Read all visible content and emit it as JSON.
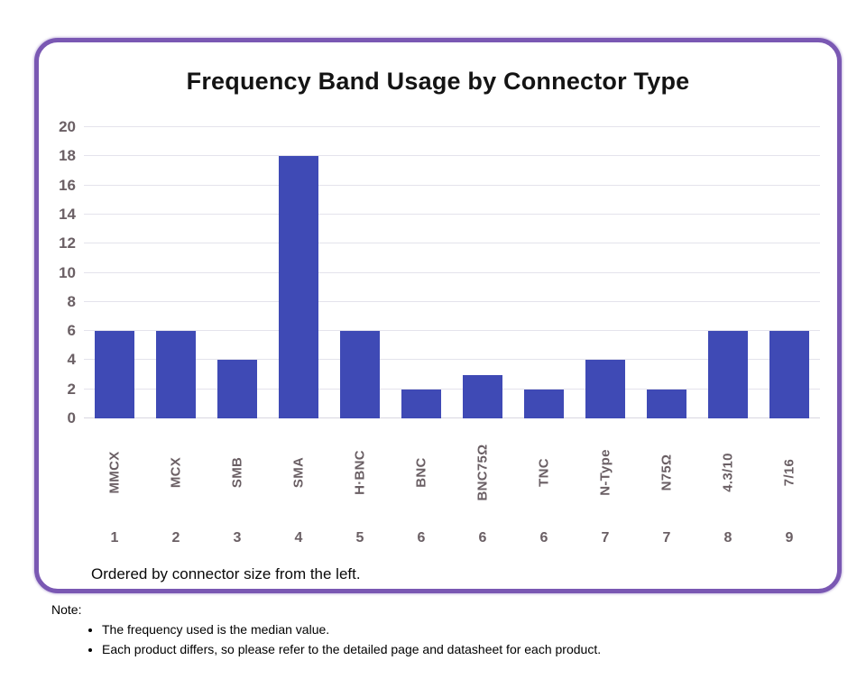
{
  "chart_card": {
    "title": "Frequency Band Usage by Connector Type",
    "caption": "Ordered by connector size from the left.",
    "colors": {
      "bar": "#3f4ab5",
      "card_border": "#7a58b3",
      "axis_label": "#6a5f64",
      "gridline": "#e4e3ec"
    }
  },
  "chart_data": {
    "type": "bar",
    "title": "Frequency Band Usage by Connector Type",
    "categories": [
      "MMCX",
      "MCX",
      "SMB",
      "SMA",
      "H·BNC",
      "BNC",
      "BNC75Ω",
      "TNC",
      "N-Type",
      "N75Ω",
      "4.3/10",
      "7/16"
    ],
    "values": [
      6,
      6,
      4,
      18,
      6,
      2,
      3,
      2,
      4,
      2,
      6,
      6
    ],
    "category_numbers": [
      "1",
      "2",
      "3",
      "4",
      "5",
      "6",
      "6",
      "6",
      "7",
      "7",
      "8",
      "9"
    ],
    "y_ticks": [
      0,
      2,
      4,
      6,
      8,
      10,
      12,
      14,
      16,
      18,
      20
    ],
    "ylim": [
      0,
      20
    ],
    "grid": true,
    "legend": "none",
    "xlabel": "",
    "ylabel": "",
    "bar_color": "#3f4ab5",
    "caption": "Ordered by connector size from the left."
  },
  "note": {
    "title": "Note:",
    "items": [
      "The frequency used is the median value.",
      "Each product differs, so please refer to the detailed page and datasheet for each product."
    ]
  }
}
